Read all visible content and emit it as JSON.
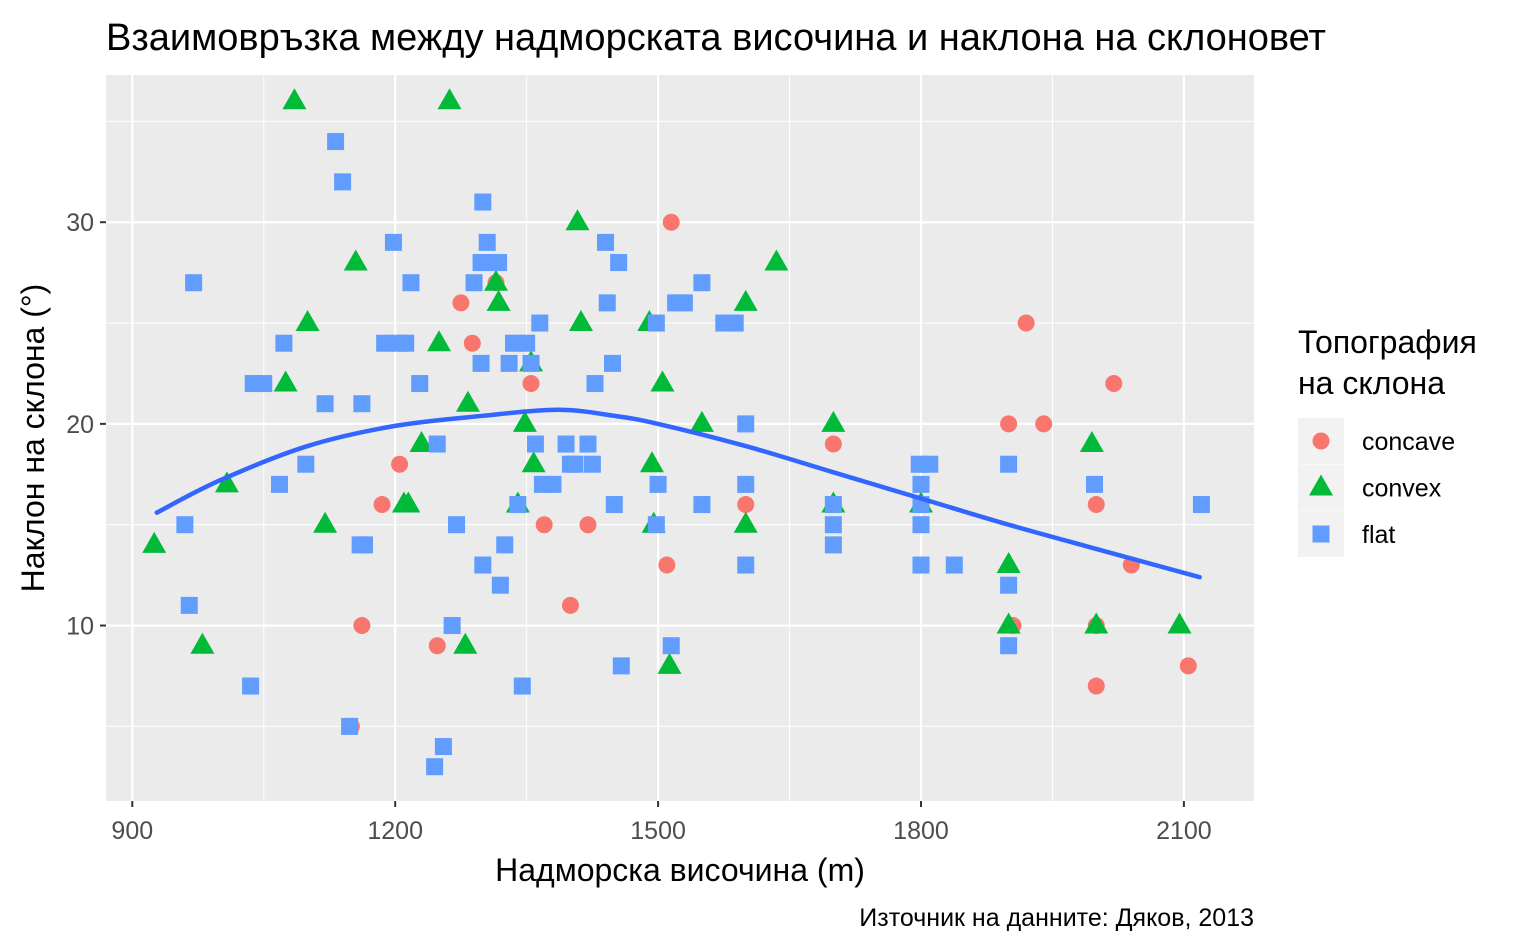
{
  "chart_data": {
    "type": "scatter",
    "title": "Взаимовръзка между надморската височина и наклона на склоновет",
    "xlabel": "Надморска височина (m)",
    "ylabel": "Наклон на склона (°)",
    "caption": "Източник на данните: Дяков, 2013",
    "xlim": [
      870,
      2180
    ],
    "ylim": [
      1.3,
      37.3
    ],
    "x_ticks": [
      900,
      1200,
      1500,
      1800,
      2100
    ],
    "y_ticks": [
      10,
      20,
      30
    ],
    "x_tick_labels": [
      "900",
      "1200",
      "1500",
      "1800",
      "2100"
    ],
    "y_tick_labels": [
      "10",
      "20",
      "30"
    ],
    "grid": true,
    "legend": {
      "title_lines": [
        "Топография",
        "на склона"
      ],
      "position": "right",
      "entries": [
        "concave",
        "convex",
        "flat"
      ]
    },
    "colors": {
      "concave": "#F8766D",
      "convex": "#00BA38",
      "flat": "#619CFF",
      "smooth": "#3366FF",
      "panel": "#EBEBEB",
      "grid": "#FFFFFF"
    },
    "series": [
      {
        "name": "concave",
        "shape": "circle",
        "points": [
          [
            1150,
            5
          ],
          [
            1162,
            10
          ],
          [
            1185,
            16
          ],
          [
            1205,
            18
          ],
          [
            1248,
            9
          ],
          [
            1275,
            26
          ],
          [
            1288,
            24
          ],
          [
            1315,
            27
          ],
          [
            1355,
            22
          ],
          [
            1370,
            15
          ],
          [
            1400,
            11
          ],
          [
            1420,
            15
          ],
          [
            1515,
            30
          ],
          [
            1510,
            13
          ],
          [
            1600,
            16
          ],
          [
            1700,
            19
          ],
          [
            1900,
            20
          ],
          [
            1905,
            10
          ],
          [
            1920,
            25
          ],
          [
            1940,
            20
          ],
          [
            2000,
            16
          ],
          [
            2000,
            10
          ],
          [
            2000,
            7
          ],
          [
            2020,
            22
          ],
          [
            2040,
            13
          ],
          [
            2105,
            8
          ]
        ]
      },
      {
        "name": "convex",
        "shape": "triangle",
        "points": [
          [
            925,
            14
          ],
          [
            980,
            9
          ],
          [
            1008,
            17
          ],
          [
            1075,
            22
          ],
          [
            1085,
            36
          ],
          [
            1100,
            25
          ],
          [
            1120,
            15
          ],
          [
            1155,
            28
          ],
          [
            1210,
            16
          ],
          [
            1215,
            16
          ],
          [
            1230,
            19
          ],
          [
            1250,
            24
          ],
          [
            1262,
            36
          ],
          [
            1280,
            9
          ],
          [
            1283,
            21
          ],
          [
            1315,
            27
          ],
          [
            1318,
            26
          ],
          [
            1340,
            16
          ],
          [
            1348,
            20
          ],
          [
            1355,
            23
          ],
          [
            1358,
            18
          ],
          [
            1408,
            30
          ],
          [
            1412,
            25
          ],
          [
            1490,
            25
          ],
          [
            1493,
            18
          ],
          [
            1495,
            15
          ],
          [
            1505,
            22
          ],
          [
            1513,
            8
          ],
          [
            1550,
            20
          ],
          [
            1600,
            26
          ],
          [
            1600,
            15
          ],
          [
            1635,
            28
          ],
          [
            1700,
            20
          ],
          [
            1700,
            16
          ],
          [
            1800,
            16
          ],
          [
            1900,
            13
          ],
          [
            1900,
            10
          ],
          [
            1995,
            19
          ],
          [
            2000,
            10
          ],
          [
            2095,
            10
          ]
        ]
      },
      {
        "name": "flat",
        "shape": "square",
        "points": [
          [
            960,
            15
          ],
          [
            965,
            11
          ],
          [
            970,
            27
          ],
          [
            1035,
            7
          ],
          [
            1038,
            22
          ],
          [
            1050,
            22
          ],
          [
            1068,
            17
          ],
          [
            1073,
            24
          ],
          [
            1098,
            18
          ],
          [
            1120,
            21
          ],
          [
            1132,
            34
          ],
          [
            1140,
            32
          ],
          [
            1148,
            5
          ],
          [
            1160,
            14
          ],
          [
            1162,
            21
          ],
          [
            1165,
            14
          ],
          [
            1188,
            24
          ],
          [
            1198,
            29
          ],
          [
            1205,
            24
          ],
          [
            1212,
            24
          ],
          [
            1218,
            27
          ],
          [
            1228,
            22
          ],
          [
            1245,
            3
          ],
          [
            1248,
            19
          ],
          [
            1255,
            4
          ],
          [
            1265,
            10
          ],
          [
            1270,
            15
          ],
          [
            1290,
            27
          ],
          [
            1298,
            28
          ],
          [
            1298,
            23
          ],
          [
            1300,
            31
          ],
          [
            1300,
            13
          ],
          [
            1305,
            29
          ],
          [
            1308,
            28
          ],
          [
            1318,
            28
          ],
          [
            1320,
            12
          ],
          [
            1325,
            14
          ],
          [
            1330,
            23
          ],
          [
            1335,
            24
          ],
          [
            1340,
            16
          ],
          [
            1345,
            7
          ],
          [
            1350,
            24
          ],
          [
            1355,
            23
          ],
          [
            1360,
            19
          ],
          [
            1365,
            25
          ],
          [
            1368,
            17
          ],
          [
            1380,
            17
          ],
          [
            1395,
            19
          ],
          [
            1400,
            18
          ],
          [
            1405,
            18
          ],
          [
            1420,
            19
          ],
          [
            1425,
            18
          ],
          [
            1428,
            22
          ],
          [
            1440,
            29
          ],
          [
            1442,
            26
          ],
          [
            1448,
            23
          ],
          [
            1450,
            16
          ],
          [
            1455,
            28
          ],
          [
            1458,
            8
          ],
          [
            1498,
            25
          ],
          [
            1498,
            15
          ],
          [
            1500,
            17
          ],
          [
            1515,
            9
          ],
          [
            1520,
            26
          ],
          [
            1530,
            26
          ],
          [
            1550,
            27
          ],
          [
            1550,
            16
          ],
          [
            1575,
            25
          ],
          [
            1588,
            25
          ],
          [
            1600,
            20
          ],
          [
            1600,
            17
          ],
          [
            1600,
            13
          ],
          [
            1700,
            16
          ],
          [
            1700,
            15
          ],
          [
            1700,
            14
          ],
          [
            1798,
            18
          ],
          [
            1800,
            17
          ],
          [
            1800,
            16
          ],
          [
            1800,
            15
          ],
          [
            1800,
            13
          ],
          [
            1810,
            18
          ],
          [
            1838,
            13
          ],
          [
            1900,
            18
          ],
          [
            1900,
            12
          ],
          [
            1900,
            9
          ],
          [
            1998,
            17
          ],
          [
            2120,
            16
          ]
        ]
      }
    ],
    "smooth_line": {
      "x": [
        928,
        1000,
        1100,
        1200,
        1300,
        1385,
        1450,
        1500,
        1600,
        1700,
        1800,
        1900,
        2000,
        2118
      ],
      "y": [
        15.6,
        17.2,
        18.9,
        19.9,
        20.4,
        20.7,
        20.4,
        20.0,
        18.9,
        17.6,
        16.3,
        15.0,
        13.8,
        12.4
      ]
    }
  }
}
